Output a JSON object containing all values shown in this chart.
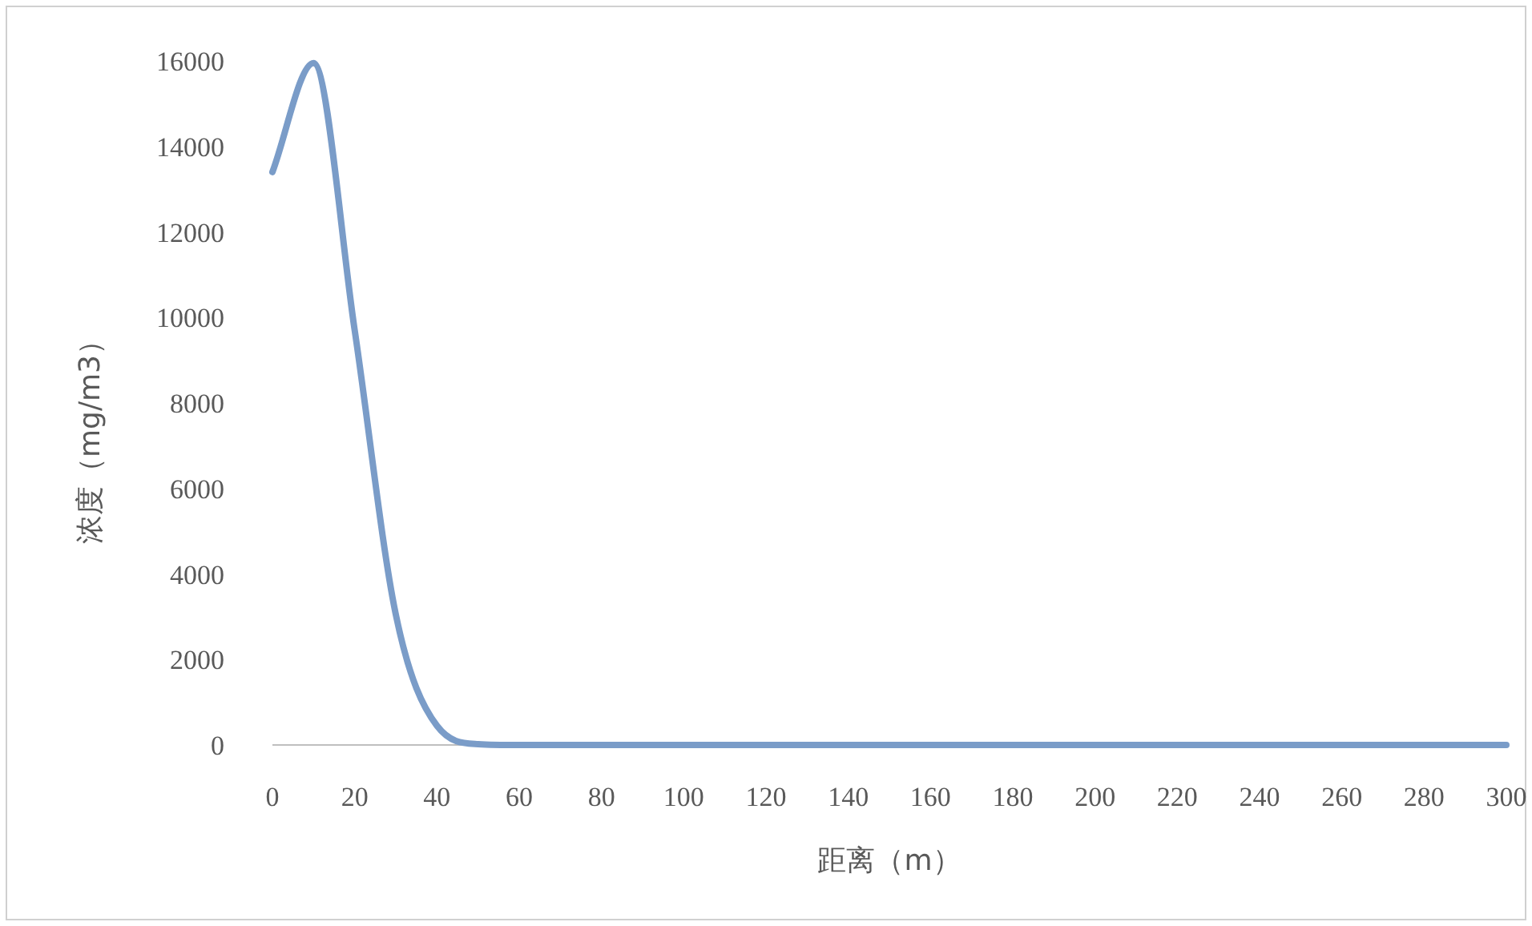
{
  "chart_data": {
    "type": "line",
    "xlabel": "距离（m）",
    "ylabel": "浓度（mg/m3）",
    "x": [
      0,
      10,
      20,
      30,
      40,
      50,
      60,
      70,
      80,
      90,
      100,
      110,
      120,
      130,
      140,
      150,
      160,
      170,
      180,
      190,
      200,
      210,
      220,
      230,
      240,
      250,
      260,
      270,
      280,
      290,
      300
    ],
    "series": [
      {
        "color": "#7a9cc8",
        "values": [
          13400,
          15950,
          9700,
          3050,
          450,
          20,
          0,
          0,
          0,
          0,
          0,
          0,
          0,
          0,
          0,
          0,
          0,
          0,
          0,
          0,
          0,
          0,
          0,
          0,
          0,
          0,
          0,
          0,
          0,
          0,
          0
        ]
      }
    ],
    "xlim": [
      0,
      300
    ],
    "xticks": [
      0,
      20,
      40,
      60,
      80,
      100,
      120,
      140,
      160,
      180,
      200,
      220,
      240,
      260,
      280,
      300
    ],
    "ylim": [
      0,
      16000
    ],
    "yticks": [
      0,
      2000,
      4000,
      6000,
      8000,
      10000,
      12000,
      14000,
      16000
    ],
    "grid": false,
    "marker": "none",
    "line_style": "solid"
  }
}
